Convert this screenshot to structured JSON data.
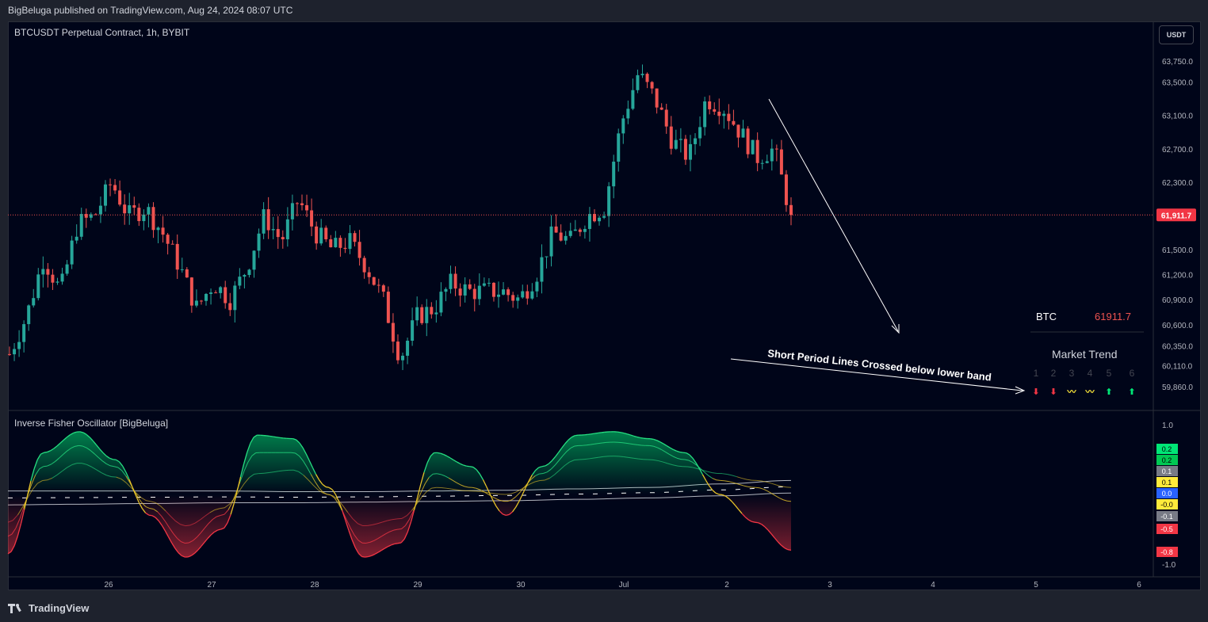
{
  "header": {
    "published": "BigBeluga published on TradingView.com, Aug 24, 2024 08:07 UTC"
  },
  "footer": {
    "brand": "TradingView"
  },
  "currency_button": "USDT",
  "colors": {
    "up": "#26a69a",
    "down": "#ef5350",
    "bg": "#000519",
    "yellow": "#ffeb3b",
    "green_bright": "#00e676"
  },
  "chart_data": [
    {
      "type": "candlestick",
      "title": "BTCUSDT Perpetual Contract, 1h, BYBIT",
      "ylim": [
        59700,
        64100
      ],
      "y_ticks": [
        "59,860.0",
        "60,110.0",
        "60,350.0",
        "60,600.0",
        "60,900.0",
        "61,200.0",
        "61,500.0",
        "62,300.0",
        "62,700.0",
        "63,100.0",
        "63,500.0",
        "63,750.0"
      ],
      "y_tick_values": [
        59860,
        60110,
        60350,
        60600,
        60900,
        61200,
        61500,
        62300,
        62700,
        63100,
        63500,
        63750
      ],
      "x_ticks": [
        "26",
        "27",
        "28",
        "29",
        "30",
        "Jul",
        "2",
        "3",
        "4",
        "5",
        "6"
      ],
      "last_price_label": "61,911.7",
      "last_price": 61911.7,
      "close_path": [
        60250,
        60700,
        61400,
        61000,
        61800,
        61900,
        62300,
        61900,
        62000,
        61700,
        61300,
        60800,
        61100,
        60900,
        61300,
        61900,
        61600,
        62100,
        61700,
        61500,
        61600,
        61300,
        60900,
        60200,
        60700,
        60800,
        61100,
        61000,
        61000,
        61000,
        60900,
        61200,
        61700,
        61600,
        61900,
        62000,
        63000,
        63600,
        63300,
        62800,
        62600,
        63300,
        63200,
        62900,
        62600,
        62700,
        61900
      ],
      "annotation": "Short Period Lines Crossed below lower band",
      "table": {
        "symbol": "BTC",
        "price": "61911.7",
        "title": "Market Trend",
        "columns": [
          "1",
          "2",
          "3",
          "4",
          "5",
          "6"
        ],
        "signals": [
          "down",
          "down",
          "neutral",
          "neutral",
          "up",
          "up"
        ],
        "signal_glyphs": [
          "⬇",
          "⬇",
          "〰",
          "〰",
          "⬆",
          "⬆"
        ]
      }
    },
    {
      "type": "line",
      "title": "Inverse Fisher Oscillator [BigBeluga]",
      "ylim": [
        -1.0,
        1.0
      ],
      "y_ticks": [
        "1.0",
        "-1.0"
      ],
      "y_tick_values": [
        1.0,
        -1.0
      ],
      "badges": [
        {
          "label": "0.2",
          "value": 0.2,
          "color": "#00e676"
        },
        {
          "label": "0.2",
          "value": 0.2,
          "color": "#00c853"
        },
        {
          "label": "0.1",
          "value": 0.1,
          "color": "#787b86"
        },
        {
          "label": "0.1",
          "value": 0.1,
          "color": "#ffeb3b"
        },
        {
          "label": "0.0",
          "value": 0.0,
          "color": "#2962ff"
        },
        {
          "label": "-0.0",
          "value": -0.0,
          "color": "#ffeb3b"
        },
        {
          "label": "-0.1",
          "value": -0.1,
          "color": "#787b86"
        },
        {
          "label": "-0.5",
          "value": -0.5,
          "color": "#f23645"
        },
        {
          "label": "-0.8",
          "value": -0.8,
          "color": "#f23645"
        }
      ],
      "fast_path": [
        -0.85,
        0.6,
        0.9,
        0.5,
        -0.3,
        -0.9,
        -0.5,
        0.85,
        0.8,
        0.1,
        -0.9,
        -0.7,
        0.6,
        0.4,
        -0.3,
        0.4,
        0.85,
        0.9,
        0.8,
        0.6,
        0.0,
        -0.4,
        -0.8
      ],
      "mid_path": [
        -0.6,
        0.4,
        0.7,
        0.4,
        -0.2,
        -0.7,
        -0.3,
        0.6,
        0.6,
        0.0,
        -0.7,
        -0.5,
        0.3,
        0.1,
        -0.1,
        0.3,
        0.7,
        0.75,
        0.7,
        0.5,
        0.2,
        0.1,
        -0.1
      ],
      "slow_path": [
        -0.4,
        0.2,
        0.45,
        0.25,
        -0.1,
        -0.45,
        -0.2,
        0.3,
        0.35,
        0.0,
        -0.45,
        -0.35,
        0.1,
        0.05,
        0.0,
        0.2,
        0.5,
        0.55,
        0.5,
        0.4,
        0.3,
        0.2,
        0.1
      ],
      "upper_band": [
        0.05,
        0.05,
        0.05,
        0.05,
        0.04,
        0.04,
        0.05,
        0.06,
        0.08,
        0.1,
        0.15,
        0.2
      ],
      "lower_band": [
        -0.15,
        -0.14,
        -0.13,
        -0.12,
        -0.12,
        -0.11,
        -0.1,
        -0.09,
        -0.07,
        -0.05,
        -0.02,
        0.02
      ]
    }
  ]
}
